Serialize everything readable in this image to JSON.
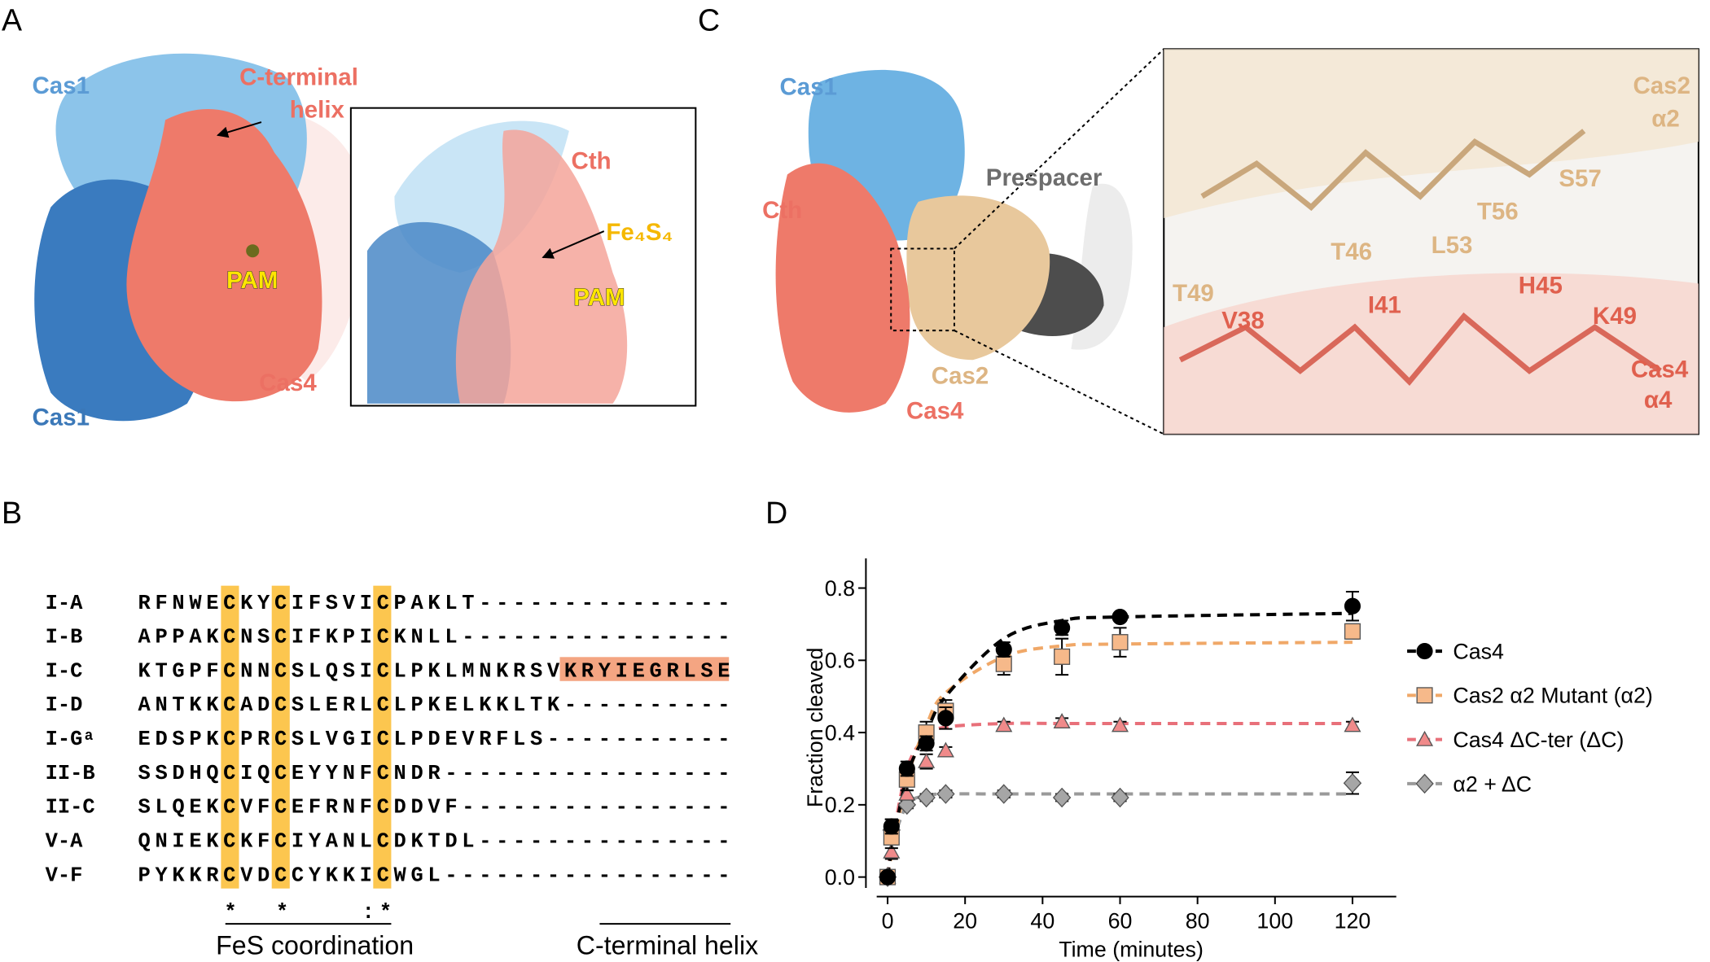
{
  "panels": {
    "a": {
      "label": "A",
      "cas1_top": "Cas1",
      "cth": [
        "C-terminal",
        "helix"
      ],
      "pam": "PAM",
      "cas4": "Cas4",
      "cas1_bottom": "Cas1",
      "inset": {
        "cth": "Cth",
        "fes": "Fe₄S₄",
        "pam": "PAM"
      }
    },
    "b": {
      "label": "B",
      "rows": [
        {
          "name": "I-A",
          "sequence": "RFNWECKYCIFSVICPAKLT---------------"
        },
        {
          "name": "I-B",
          "sequence": "APPAKCNSCIFKPICKNLL----------------"
        },
        {
          "name": "I-C",
          "sequence": "KTGPFCNNCSLQSICLPKLMNKRSVKRYIEGRLSE"
        },
        {
          "name": "I-D",
          "sequence": "ANTKKCADCSLERLCLPKELKKLTK----------"
        },
        {
          "name": "I-Gᵃ",
          "sequence": "EDSPKCPRCSLVGICLPDEVRFLS-----------"
        },
        {
          "name": "II-B",
          "sequence": "SSDHQCIQCEYYNFCNDR-----------------"
        },
        {
          "name": "II-C",
          "sequence": "SLQEKCVFCEFRNFCDDVF----------------"
        },
        {
          "name": "V-A",
          "sequence": "QNIEKCKFCIYANLCDKTDL---------------"
        },
        {
          "name": "V-F",
          "sequence": "PYKKRCVDCCYKKICWGL-----------------"
        }
      ],
      "conservation": "     *  *    :*",
      "coordinated_columns": [
        5,
        8,
        14
      ],
      "helix_row": 2,
      "helix_columns": [
        25,
        35
      ],
      "fes_label": "FeS coordination",
      "helix_label": "C-terminal helix"
    },
    "c": {
      "label": "C",
      "cas1": "Cas1",
      "cth": "Cth",
      "prespacer": "Prespacer",
      "cas2": "Cas2",
      "cas4": "Cas4",
      "inset": {
        "cas2": [
          "Cas2",
          "α2"
        ],
        "cas2_residues": [
          "T49",
          "T46",
          "L53",
          "T56",
          "S57"
        ],
        "cas4_residues": [
          "V38",
          "I41",
          "H45",
          "K49"
        ],
        "cas4": [
          "Cas4",
          "α4"
        ]
      }
    },
    "d": {
      "label": "D"
    }
  },
  "chart_data": {
    "type": "scatter",
    "x_label": "Time (minutes)",
    "y_label": "Fraction cleaved",
    "x": [
      0,
      1,
      5,
      10,
      15,
      30,
      45,
      60,
      120
    ],
    "xlim": [
      -5.6,
      131.3
    ],
    "xticks": [
      0,
      20,
      40,
      60,
      80,
      100,
      120
    ],
    "ylim": [
      -0.054,
      0.882
    ],
    "yticks": [
      {
        "value": 0,
        "label": "0.0"
      },
      0.2,
      0.4,
      0.6,
      0.8
    ],
    "series": [
      {
        "name": "Cas4",
        "color": "#000000",
        "fit_color": "#000000",
        "marker": "circle",
        "values": [
          0.0,
          0.14,
          0.3,
          0.37,
          0.44,
          0.63,
          0.69,
          0.72,
          0.75
        ],
        "errors": [
          0.01,
          0.02,
          0.02,
          0.02,
          0.03,
          0.02,
          0.02,
          0.01,
          0.04
        ],
        "fit": [
          0.0,
          0.07,
          0.28,
          0.4,
          0.5,
          0.66,
          0.71,
          0.72,
          0.73
        ]
      },
      {
        "name": "Cas2 α2 Mutant (α2)",
        "color": "#f6b98a",
        "fit_color": "#f0a868",
        "marker": "square",
        "values": [
          0.0,
          0.11,
          0.27,
          0.4,
          0.46,
          0.59,
          0.61,
          0.65,
          0.68
        ],
        "errors": [
          0.01,
          0.03,
          0.03,
          0.03,
          0.03,
          0.03,
          0.05,
          0.04,
          0.02
        ],
        "fit": [
          0.0,
          0.06,
          0.27,
          0.42,
          0.51,
          0.61,
          0.64,
          0.645,
          0.65
        ]
      },
      {
        "name": "Cas4 ΔC-ter (ΔC)",
        "color": "#f08a8a",
        "fit_color": "#e8707a",
        "marker": "triangle",
        "values": [
          0.0,
          0.07,
          0.23,
          0.32,
          0.35,
          0.42,
          0.43,
          0.42,
          0.42
        ],
        "errors": [
          0.01,
          0.02,
          0.01,
          0.02,
          0.01,
          0.01,
          0.01,
          0.01,
          0.01
        ],
        "fit": [
          0.0,
          0.08,
          0.3,
          0.39,
          0.415,
          0.425,
          0.425,
          0.425,
          0.425
        ]
      },
      {
        "name": "α2 + ΔC",
        "color": "#a6a6a6",
        "fit_color": "#9a9a9a",
        "marker": "diamond",
        "values": [
          0.0,
          0.13,
          0.2,
          0.22,
          0.23,
          0.23,
          0.22,
          0.22,
          0.26
        ],
        "errors": [
          0.01,
          0.03,
          0.01,
          0.01,
          0.01,
          0.01,
          0.01,
          0.01,
          0.03
        ],
        "fit": [
          0.0,
          0.08,
          0.2,
          0.225,
          0.23,
          0.23,
          0.23,
          0.23,
          0.23
        ]
      }
    ]
  }
}
